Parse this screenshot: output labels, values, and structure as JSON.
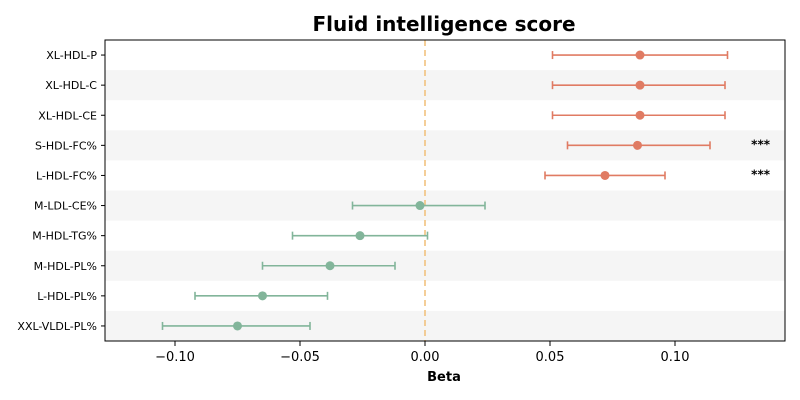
{
  "chart_data": {
    "type": "forest",
    "title": "Fluid intelligence score",
    "xlabel": "Beta",
    "xlim": [
      -0.128,
      0.144
    ],
    "xticks": [
      -0.1,
      -0.05,
      0.0,
      0.05,
      0.1
    ],
    "xtick_labels": [
      "−0.10",
      "−0.05",
      "0.00",
      "0.05",
      "0.10"
    ],
    "reference_line": 0.0,
    "colors": {
      "positive": "#e07b63",
      "negative": "#82b59a",
      "reference": "#f2c27e",
      "band": "#f5f5f5"
    },
    "rows": [
      {
        "label": "XL-HDL-P",
        "beta": 0.086,
        "ci_low": 0.051,
        "ci_high": 0.121,
        "sig": ""
      },
      {
        "label": "XL-HDL-C",
        "beta": 0.086,
        "ci_low": 0.051,
        "ci_high": 0.12,
        "sig": ""
      },
      {
        "label": "XL-HDL-CE",
        "beta": 0.086,
        "ci_low": 0.051,
        "ci_high": 0.12,
        "sig": ""
      },
      {
        "label": "S-HDL-FC%",
        "beta": 0.085,
        "ci_low": 0.057,
        "ci_high": 0.114,
        "sig": "***"
      },
      {
        "label": "L-HDL-FC%",
        "beta": 0.072,
        "ci_low": 0.048,
        "ci_high": 0.096,
        "sig": "***"
      },
      {
        "label": "M-LDL-CE%",
        "beta": -0.002,
        "ci_low": -0.029,
        "ci_high": 0.024,
        "sig": ""
      },
      {
        "label": "M-HDL-TG%",
        "beta": -0.026,
        "ci_low": -0.053,
        "ci_high": 0.001,
        "sig": ""
      },
      {
        "label": "M-HDL-PL%",
        "beta": -0.038,
        "ci_low": -0.065,
        "ci_high": -0.012,
        "sig": ""
      },
      {
        "label": "L-HDL-PL%",
        "beta": -0.065,
        "ci_low": -0.092,
        "ci_high": -0.039,
        "sig": ""
      },
      {
        "label": "XXL-VLDL-PL%",
        "beta": -0.075,
        "ci_low": -0.105,
        "ci_high": -0.046,
        "sig": ""
      }
    ]
  }
}
